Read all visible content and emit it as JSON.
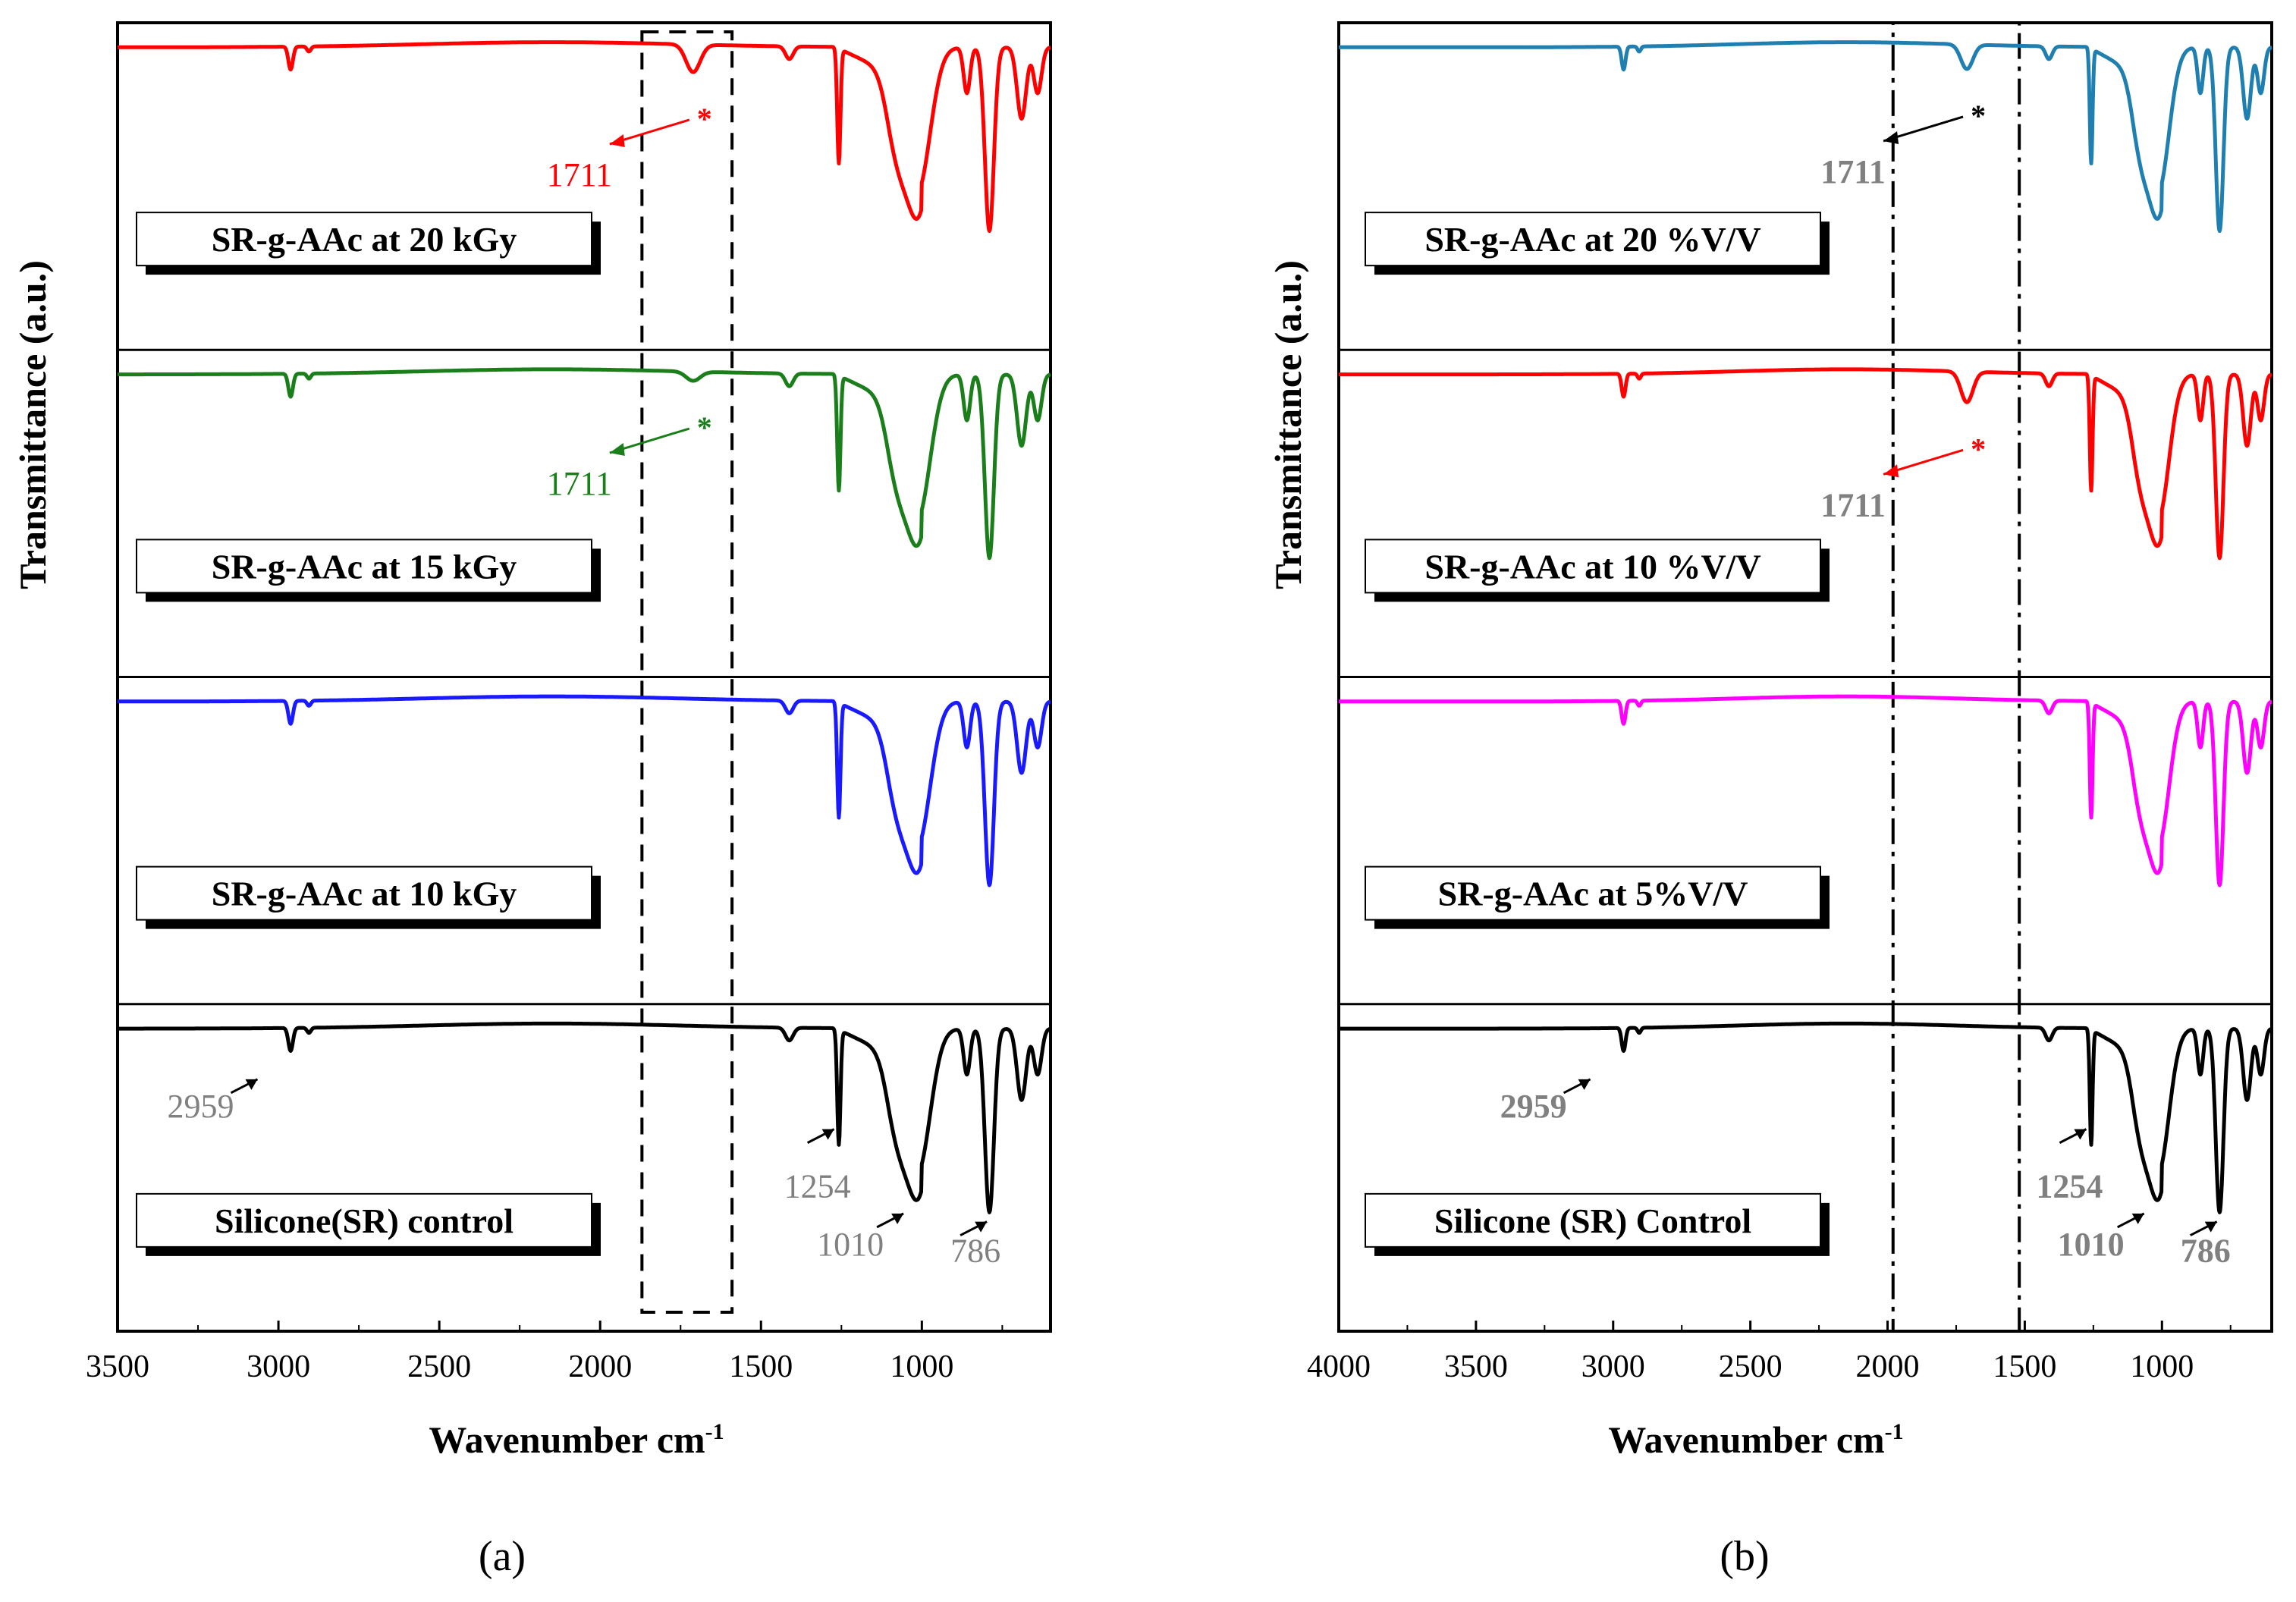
{
  "figure": {
    "panels": [
      {
        "caption": "(a)",
        "ylabel": "Transmittance (a.u.)",
        "xlabel": "Wavenumber cm",
        "xlabel_sup": "-1"
      },
      {
        "caption": "(b)",
        "ylabel": "Transmittance (a.u.)",
        "xlabel": "Wavenumber cm",
        "xlabel_sup": "-1"
      }
    ]
  },
  "chart_data": [
    {
      "type": "line",
      "panel": "a",
      "title": "",
      "xlabel": "Wavenumber cm-1",
      "ylabel": "Transmittance (a.u.)",
      "xlim": [
        3500,
        600
      ],
      "xticks": [
        3500,
        3000,
        2500,
        2000,
        1500,
        1000
      ],
      "xtick_labels": [
        "3500",
        "3000",
        "2500",
        "2000",
        "1500",
        "1000"
      ],
      "highlight_region": [
        1870,
        1590
      ],
      "series": [
        {
          "name": "SR-g-AAc at 20 kGy",
          "color": "#ff0000",
          "peak_1711": 0.9,
          "annotations": [
            {
              "text": "1711",
              "color": "#ff0000",
              "star": true
            }
          ]
        },
        {
          "name": "SR-g-AAc at 15 kGy",
          "color": "#1a7f1a",
          "peak_1711": 0.3,
          "annotations": [
            {
              "text": "1711",
              "color": "#1a7f1a",
              "star": true
            }
          ]
        },
        {
          "name": "SR-g-AAc at 10 kGy",
          "color": "#1a1aff",
          "peak_1711": 0.0,
          "annotations": []
        },
        {
          "name": "Silicone(SR) control",
          "color": "#000000",
          "peak_1711": 0.0,
          "annotations": [
            {
              "text": "2959",
              "color": "#808080"
            },
            {
              "text": "1254",
              "color": "#808080"
            },
            {
              "text": "1010",
              "color": "#808080"
            },
            {
              "text": "786",
              "color": "#808080"
            }
          ]
        }
      ]
    },
    {
      "type": "line",
      "panel": "b",
      "title": "",
      "xlabel": "Wavenumber cm-1",
      "ylabel": "Transmittance (a.u.)",
      "xlim": [
        4000,
        600
      ],
      "xticks": [
        4000,
        3500,
        3000,
        2500,
        2000,
        1500,
        1000
      ],
      "xtick_labels": [
        "4000",
        "3500",
        "3000",
        "2500",
        "2000",
        "1500",
        "1000"
      ],
      "highlight_region": [
        1980,
        1520
      ],
      "series": [
        {
          "name": "SR-g-AAc at 20 %V/V",
          "color": "#1f7fb0",
          "peak_1711": 0.8,
          "annotations": [
            {
              "text": "1711",
              "color": "#808080",
              "star": true,
              "star_color": "#000000"
            }
          ]
        },
        {
          "name": "SR-g-AAc at 10 %V/V",
          "color": "#ff0000",
          "peak_1711": 1.0,
          "annotations": [
            {
              "text": "1711",
              "color": "#808080",
              "star": true,
              "star_color": "#ff0000"
            }
          ]
        },
        {
          "name": "SR-g-AAc at 5%V/V",
          "color": "#ff00ff",
          "peak_1711": 0.0,
          "annotations": []
        },
        {
          "name": "Silicone (SR) Control",
          "color": "#000000",
          "peak_1711": 0.0,
          "annotations": [
            {
              "text": "2959",
              "color": "#808080"
            },
            {
              "text": "1254",
              "color": "#808080"
            },
            {
              "text": "1010",
              "color": "#808080"
            },
            {
              "text": "786",
              "color": "#808080"
            }
          ]
        }
      ]
    }
  ]
}
